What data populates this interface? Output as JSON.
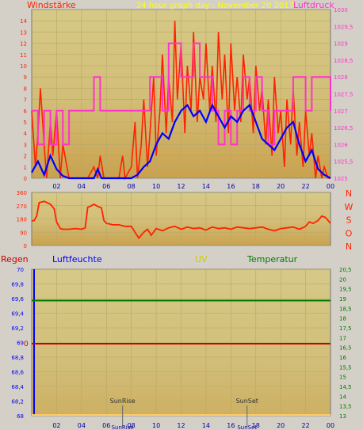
{
  "colors": {
    "frame": "#d4d0c8",
    "plot_bg": "#d6c987",
    "plot_bg_dark": "#c9a24e",
    "grid": "#b7a76a",
    "wind": "#ff2200",
    "wind_avg": "#0000ff",
    "pressure": "#ff33cc",
    "direction": "#ff2200",
    "humidity": "#0000ff",
    "temperature": "#007a00",
    "rain": "#cc0000",
    "uv": "#cccc00",
    "title": "#ffff00"
  },
  "panel1": {
    "left_title": "Windstärke",
    "center_title": "24 hour graph day : November 20 2017",
    "right_title": "Luftdruck"
  },
  "panel2": {
    "directions": [
      "N",
      "W",
      "S",
      "O",
      "N"
    ]
  },
  "panel3": {
    "label_rain": "Regen",
    "label_humidity": "Luftfeuchte",
    "label_uv": "UV",
    "label_temp": "Temperatur",
    "sunrise_label": "SunRise",
    "sunset_label": "SunSet",
    "rain_zero_label": "0"
  },
  "chart_data": [
    {
      "type": "line",
      "id": "wind_pressure",
      "title": "24 hour graph day : November 20 2017",
      "x_ticks": [
        "02",
        "04",
        "06",
        "08",
        "10",
        "12",
        "14",
        "16",
        "18",
        "20",
        "22",
        "00"
      ],
      "x_range_hours": [
        0,
        24
      ],
      "y_left_label": "Windstärke",
      "y_left_ticks": [
        "0",
        "1",
        "2",
        "3",
        "4",
        "5",
        "6",
        "7",
        "8",
        "9",
        "10",
        "11",
        "12",
        "13",
        "14"
      ],
      "ylim_left": [
        0,
        15
      ],
      "y_right_label": "Luftdruck",
      "y_right_ticks": [
        "1025",
        "1025,5",
        "1026",
        "1026,5",
        "1027",
        "1027,5",
        "1028",
        "1028,5",
        "1029",
        "1029,5",
        "1030"
      ],
      "ylim_right": [
        1025,
        1030
      ],
      "series": [
        {
          "name": "Windstärke (Böen)",
          "axis": "left",
          "hours": [
            0.0,
            0.3,
            0.5,
            0.7,
            1.0,
            1.2,
            1.5,
            1.7,
            2.0,
            2.3,
            2.5,
            3.0,
            3.5,
            4.0,
            4.5,
            5.0,
            5.3,
            5.5,
            5.8,
            6.0,
            6.5,
            7.0,
            7.3,
            7.5,
            8.0,
            8.3,
            8.5,
            8.8,
            9.0,
            9.3,
            9.5,
            9.8,
            10.0,
            10.3,
            10.5,
            10.8,
            11.0,
            11.3,
            11.5,
            11.7,
            12.0,
            12.3,
            12.5,
            12.8,
            13.0,
            13.3,
            13.5,
            13.8,
            14.0,
            14.3,
            14.5,
            14.8,
            15.0,
            15.3,
            15.5,
            15.8,
            16.0,
            16.3,
            16.5,
            16.8,
            17.0,
            17.3,
            17.5,
            17.8,
            18.0,
            18.3,
            18.5,
            18.8,
            19.0,
            19.3,
            19.5,
            19.8,
            20.0,
            20.3,
            20.5,
            20.8,
            21.0,
            21.3,
            21.5,
            21.8,
            22.0,
            22.3,
            22.5,
            22.8,
            23.0,
            23.3,
            23.5,
            23.8,
            24.0
          ],
          "values": [
            6,
            1,
            4,
            8,
            3,
            0,
            5,
            2,
            6,
            0,
            3,
            0,
            0,
            0,
            0,
            1,
            0,
            2,
            0,
            0,
            0,
            0,
            2,
            0,
            1,
            5,
            0,
            3,
            7,
            1,
            4,
            9,
            2,
            6,
            11,
            4,
            9,
            5,
            14,
            7,
            12,
            4,
            10,
            6,
            13,
            5,
            9,
            7,
            12,
            6,
            10,
            5,
            13,
            7,
            11,
            4,
            12,
            6,
            9,
            5,
            11,
            7,
            9,
            4,
            10,
            6,
            8,
            3,
            7,
            2,
            9,
            4,
            6,
            1,
            7,
            3,
            8,
            2,
            5,
            1,
            6,
            2,
            4,
            0,
            2,
            0,
            1,
            0,
            0
          ]
        },
        {
          "name": "Windstärke (Mittel)",
          "axis": "left",
          "hours": [
            0.0,
            0.5,
            1.0,
            1.5,
            2.0,
            2.5,
            3.0,
            4.0,
            5.0,
            5.3,
            5.6,
            6.0,
            7.0,
            8.0,
            8.5,
            9.0,
            9.5,
            10.0,
            10.5,
            11.0,
            11.5,
            12.0,
            12.5,
            13.0,
            13.5,
            14.0,
            14.5,
            15.0,
            15.5,
            16.0,
            16.5,
            17.0,
            17.5,
            18.0,
            18.5,
            19.0,
            19.5,
            20.0,
            20.5,
            21.0,
            21.5,
            22.0,
            22.5,
            23.0,
            23.5,
            24.0
          ],
          "values": [
            0.5,
            1.5,
            0.3,
            2.0,
            0.8,
            0.2,
            0,
            0,
            0,
            0.8,
            0,
            0,
            0,
            0,
            0.3,
            1.0,
            1.5,
            3.0,
            4.0,
            3.5,
            5.0,
            6.0,
            6.5,
            5.5,
            6.0,
            5.0,
            6.5,
            5.5,
            4.5,
            5.5,
            5.0,
            6.0,
            6.5,
            5.0,
            3.5,
            3.0,
            2.5,
            3.5,
            4.5,
            5.0,
            3.0,
            1.5,
            2.5,
            0.8,
            0.3,
            0
          ]
        },
        {
          "name": "Luftdruck",
          "axis": "right",
          "hours": [
            0.0,
            0.5,
            1.0,
            1.5,
            2.0,
            2.5,
            3.0,
            4.0,
            4.5,
            5.0,
            5.5,
            6.0,
            7.0,
            8.0,
            8.5,
            9.0,
            9.5,
            10.0,
            10.5,
            11.0,
            11.5,
            12.0,
            12.5,
            13.0,
            13.5,
            14.0,
            14.5,
            15.0,
            15.5,
            16.0,
            16.5,
            17.0,
            17.5,
            18.0,
            18.5,
            19.0,
            19.5,
            20.0,
            20.5,
            21.0,
            21.5,
            22.0,
            22.5,
            23.0,
            23.5,
            24.0
          ],
          "values": [
            1027,
            1026,
            1027,
            1026,
            1027,
            1026,
            1027,
            1027,
            1027,
            1028,
            1027,
            1027,
            1027,
            1027,
            1027,
            1027,
            1028,
            1028,
            1027,
            1029,
            1029,
            1028,
            1028,
            1029,
            1028,
            1028,
            1027,
            1026,
            1027,
            1026,
            1027,
            1028,
            1027,
            1028,
            1027,
            1026,
            1027,
            1027,
            1027,
            1028,
            1028,
            1027,
            1028,
            1028,
            1028,
            1027
          ]
        }
      ]
    },
    {
      "type": "line",
      "id": "wind_direction",
      "x_range_hours": [
        0,
        24
      ],
      "y_ticks": [
        "0",
        "90",
        "180",
        "270",
        "360"
      ],
      "ylim": [
        0,
        360
      ],
      "series": [
        {
          "name": "Windrichtung",
          "hours": [
            0.0,
            0.2,
            0.4,
            0.6,
            1.0,
            1.5,
            1.8,
            2.0,
            2.3,
            2.5,
            3.0,
            3.5,
            4.0,
            4.3,
            4.5,
            4.8,
            5.0,
            5.3,
            5.6,
            5.8,
            6.0,
            6.3,
            6.5,
            7.0,
            7.5,
            8.0,
            8.3,
            8.6,
            9.0,
            9.3,
            9.6,
            10.0,
            10.5,
            11.0,
            11.5,
            12.0,
            12.5,
            13.0,
            13.5,
            14.0,
            14.5,
            15.0,
            15.5,
            16.0,
            16.5,
            17.0,
            17.5,
            18.0,
            18.5,
            19.0,
            19.5,
            20.0,
            20.5,
            21.0,
            21.5,
            22.0,
            22.3,
            22.6,
            23.0,
            23.3,
            23.6,
            24.0
          ],
          "values": [
            165,
            170,
            200,
            290,
            300,
            280,
            250,
            160,
            115,
            110,
            110,
            115,
            110,
            120,
            260,
            270,
            280,
            265,
            255,
            170,
            150,
            145,
            140,
            140,
            130,
            130,
            90,
            50,
            90,
            110,
            70,
            115,
            100,
            120,
            130,
            110,
            125,
            115,
            120,
            105,
            125,
            115,
            120,
            110,
            125,
            120,
            115,
            120,
            125,
            110,
            100,
            115,
            120,
            125,
            110,
            130,
            160,
            150,
            170,
            200,
            190,
            150
          ]
        }
      ]
    },
    {
      "type": "line",
      "id": "humidity_temp_rain_uv",
      "x_ticks": [
        "02",
        "04",
        "06",
        "08",
        "10",
        "12",
        "14",
        "16",
        "18",
        "20",
        "22",
        "00"
      ],
      "x_range_hours": [
        0,
        24
      ],
      "y_left_label": "Luftfeuchte",
      "y_left_ticks": [
        "68",
        "68,2",
        "68,4",
        "68,6",
        "68,8",
        "69",
        "69,2",
        "69,4",
        "69,6",
        "69,8",
        "70"
      ],
      "ylim_left": [
        68,
        70
      ],
      "y_right_label": "Temperatur",
      "y_right_ticks": [
        "13",
        "13,5",
        "14",
        "14,5",
        "15",
        "15,5",
        "16",
        "16,5",
        "17",
        "17,5",
        "18",
        "18,5",
        "19",
        "19,5",
        "20",
        "20,5"
      ],
      "ylim_right": [
        13,
        20.5
      ],
      "series": [
        {
          "name": "Temperatur",
          "axis": "right",
          "hours": [
            0,
            24
          ],
          "values": [
            18.9,
            18.9
          ]
        },
        {
          "name": "Regen",
          "axis": "rain",
          "hours": [
            0,
            24
          ],
          "values": [
            0,
            0
          ]
        },
        {
          "name": "UV",
          "axis": "uv",
          "hours": [
            0,
            24
          ],
          "values": [
            0,
            0
          ]
        }
      ],
      "markers": [
        {
          "label": "SunRise",
          "hour": 7.3
        },
        {
          "label": "SunSet",
          "hour": 17.3
        }
      ]
    }
  ]
}
